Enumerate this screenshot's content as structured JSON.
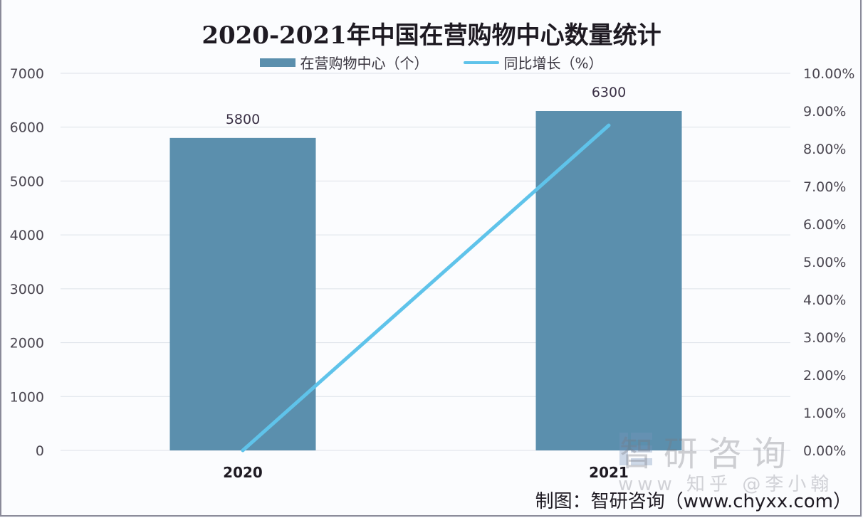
{
  "chart_data": {
    "type": "bar+line",
    "title": "2020-2021年中国在营购物中心数量统计",
    "categories": [
      "2020",
      "2021"
    ],
    "series": [
      {
        "name": "在营购物中心（个）",
        "type": "bar",
        "axis": "left",
        "values": [
          5800,
          6300
        ],
        "color": "#5b8fad"
      },
      {
        "name": "同比增长（%）",
        "type": "line",
        "axis": "right",
        "values": [
          0.0,
          8.62
        ],
        "color": "#5fc3ea"
      }
    ],
    "y_left": {
      "min": 0,
      "max": 7000,
      "ticks": [
        "0",
        "1000",
        "2000",
        "3000",
        "4000",
        "5000",
        "6000",
        "7000"
      ]
    },
    "y_right": {
      "min": 0,
      "max": 10,
      "ticks": [
        "0.00%",
        "1.00%",
        "2.00%",
        "3.00%",
        "4.00%",
        "5.00%",
        "6.00%",
        "7.00%",
        "8.00%",
        "9.00%",
        "10.00%"
      ]
    },
    "data_labels": [
      "5800",
      "6300"
    ],
    "grid": true,
    "legend_position": "top"
  },
  "title": "2020-2021年中国在营购物中心数量统计",
  "legend": {
    "bar_label": "在营购物中心（个）",
    "line_label": "同比增长（%）"
  },
  "watermark": {
    "brand": "智研咨询",
    "sub": "www 知乎 @李小翰"
  },
  "source": "制图：智研咨询（www.chyxx.com）"
}
